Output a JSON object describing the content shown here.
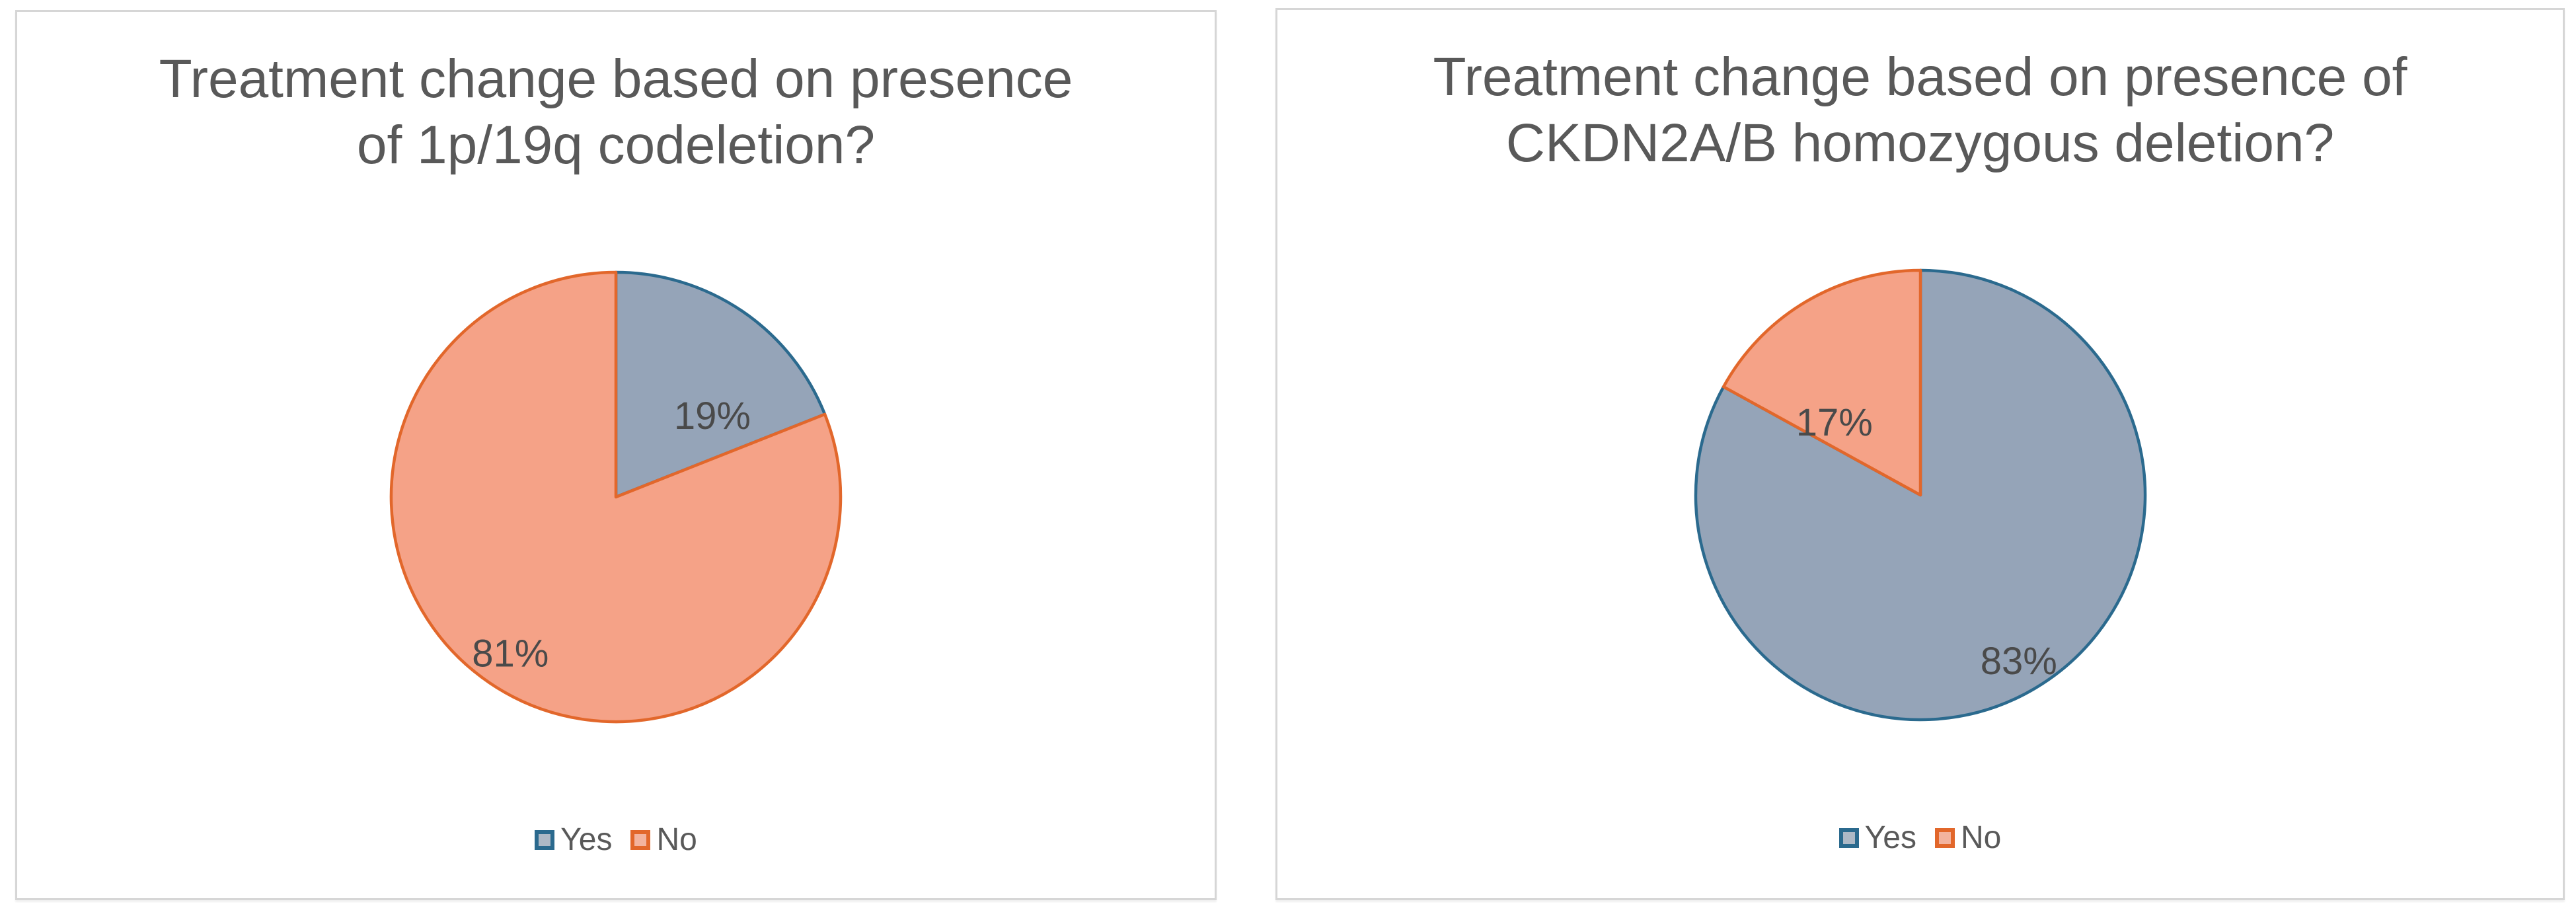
{
  "styles": {
    "page_bg": "#FFFFFF",
    "card_border": "#D6D6D6",
    "title_color": "#595959",
    "data_label_color": "#4A4A4A",
    "legend_text_color": "#595959",
    "yes_fill": "#95A4B8",
    "yes_stroke": "#2B6A8E",
    "no_fill": "#F5A287",
    "no_stroke": "#E2672B"
  },
  "chart_data": [
    {
      "type": "pie",
      "title": "Treatment change based on presence of 1p/19q codeletion?",
      "title_lines": [
        "Treatment change based on presence",
        "of 1p/19q codeletion?"
      ],
      "categories": [
        "Yes",
        "No"
      ],
      "values": [
        19,
        81
      ],
      "data_labels": [
        "19%",
        "81%"
      ],
      "legend_position": "bottom",
      "start_angle_deg": 0,
      "direction": "clockwise",
      "slices": [
        {
          "name": "Yes",
          "value": 19,
          "label": "19%",
          "fill": "#95A4B8",
          "stroke": "#2B6A8E",
          "legend_fill": "#AEB9C6",
          "label_r_frac": 0.56,
          "label_angle_deg": 50
        },
        {
          "name": "No",
          "value": 81,
          "label": "81%",
          "fill": "#F5A287",
          "stroke": "#E2672B",
          "legend_fill": "#F3B39E",
          "label_r_frac": 0.84,
          "label_angle_deg": 214
        }
      ]
    },
    {
      "type": "pie",
      "title": "Treatment change based on presence of CKDN2A/B homozygous deletion?",
      "title_lines": [
        "Treatment change based on presence of",
        "CKDN2A/B homozygous deletion?"
      ],
      "categories": [
        "Yes",
        "No"
      ],
      "values": [
        83,
        17
      ],
      "data_labels": [
        "83%",
        "17%"
      ],
      "legend_position": "bottom",
      "start_angle_deg": 0,
      "direction": "clockwise",
      "slices": [
        {
          "name": "Yes",
          "value": 83,
          "label": "83%",
          "fill": "#95A4B8",
          "stroke": "#2B6A8E",
          "legend_fill": "#AEB9C6",
          "label_r_frac": 0.86,
          "label_angle_deg": 149.4
        },
        {
          "name": "No",
          "value": 17,
          "label": "17%",
          "fill": "#F5A287",
          "stroke": "#E2672B",
          "legend_fill": "#F3B39E",
          "label_r_frac": 0.5,
          "label_angle_deg": 310
        }
      ]
    }
  ]
}
